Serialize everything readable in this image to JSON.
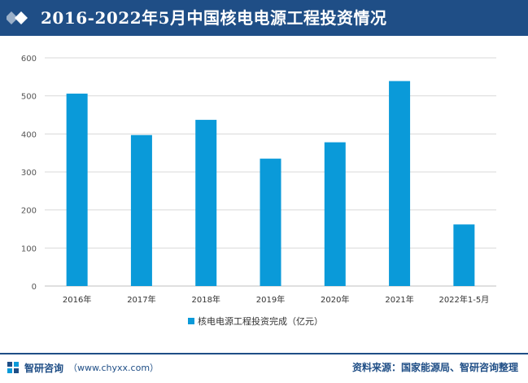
{
  "header": {
    "title": "2016-2022年5月中国核电电源工程投资情况"
  },
  "chart_data": {
    "type": "bar",
    "categories": [
      "2016年",
      "2017年",
      "2018年",
      "2019年",
      "2020年",
      "2021年",
      "2022年1-5月"
    ],
    "series": [
      {
        "name": "核电电源工程投资完成（亿元）",
        "values": [
          506,
          397,
          437,
          335,
          378,
          539,
          162
        ]
      }
    ],
    "title": "",
    "xlabel": "",
    "ylabel": "",
    "ylim": [
      0,
      600
    ],
    "yticks": [
      "0",
      "100",
      "200",
      "300",
      "400",
      "500",
      "600"
    ],
    "grid": true,
    "legend_position": "bottom",
    "bar_color": "#0a9ad9"
  },
  "footer": {
    "brand": "智研咨询",
    "url": "（www.chyxx.com）",
    "source": "资料来源：国家能源局、智研咨询整理"
  },
  "colors": {
    "header_bg": "#1f4e86",
    "accent": "#0a9ad9",
    "grid": "#d9d9d9"
  },
  "icons": [
    "diamond-icon",
    "zhiyan-logo-icon"
  ]
}
